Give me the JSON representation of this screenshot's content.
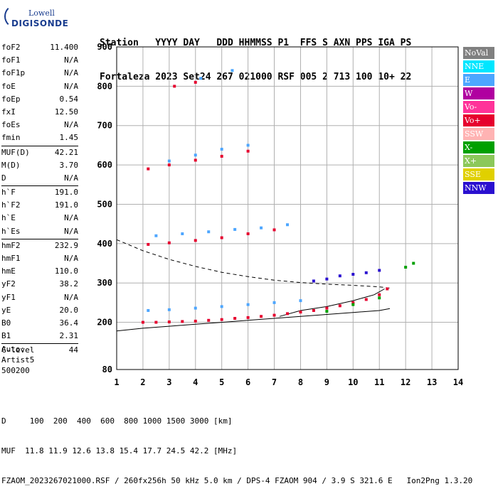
{
  "logo": {
    "line1": "Lowell",
    "line2": "DIGISONDE"
  },
  "header": {
    "labels": "Station   YYYY DAY   DDD HHMMSS P1  FFS S AXN PPS IGA PS",
    "values": "Fortaleza 2023 Set24 267 021000 RSF 005 2 713 100 10+ 22"
  },
  "params": [
    [
      {
        "k": "foF2",
        "v": "11.400"
      },
      {
        "k": "foF1",
        "v": "N/A"
      },
      {
        "k": "foF1p",
        "v": "N/A"
      },
      {
        "k": "foE",
        "v": "N/A"
      },
      {
        "k": "foEp",
        "v": "0.54"
      },
      {
        "k": "fxI",
        "v": "12.50"
      },
      {
        "k": "foEs",
        "v": "N/A"
      },
      {
        "k": "fmin",
        "v": "1.45"
      }
    ],
    [
      {
        "k": "MUF(D)",
        "v": "42.21"
      },
      {
        "k": "M(D)",
        "v": "3.70"
      },
      {
        "k": "D",
        "v": "N/A"
      }
    ],
    [
      {
        "k": "h`F",
        "v": "191.0"
      },
      {
        "k": "h`F2",
        "v": "191.0"
      },
      {
        "k": "h`E",
        "v": "N/A"
      },
      {
        "k": "h`Es",
        "v": "N/A"
      }
    ],
    [
      {
        "k": "hmF2",
        "v": "232.9"
      },
      {
        "k": "hmF1",
        "v": "N/A"
      },
      {
        "k": "hmE",
        "v": "110.0"
      },
      {
        "k": "yF2",
        "v": "38.2"
      },
      {
        "k": "yF1",
        "v": "N/A"
      },
      {
        "k": "yE",
        "v": "20.0"
      },
      {
        "k": "B0",
        "v": "36.4"
      },
      {
        "k": "B1",
        "v": "2.31"
      }
    ],
    [
      {
        "k": "C-level",
        "v": "44"
      }
    ]
  ],
  "auto": {
    "l1": "Auto:",
    "l2": "Artist5",
    "l3": "500200"
  },
  "legend": [
    {
      "label": "NoVal",
      "color": "#808080"
    },
    {
      "label": "NNE",
      "color": "#00e6ff"
    },
    {
      "label": "E",
      "color": "#4da6ff"
    },
    {
      "label": "W",
      "color": "#b000a0"
    },
    {
      "label": "Vo-",
      "color": "#ff3399"
    },
    {
      "label": "Vo+",
      "color": "#e6002e"
    },
    {
      "label": "SSW",
      "color": "#ffb3b3"
    },
    {
      "label": "X-",
      "color": "#00a000"
    },
    {
      "label": "X+",
      "color": "#8cc85a"
    },
    {
      "label": "SSE",
      "color": "#e0d000"
    },
    {
      "label": "NNW",
      "color": "#2a10d0"
    }
  ],
  "footer": {
    "l1": "D     100  200  400  600  800 1000 1500 3000 [km]",
    "l2": "MUF  11.8 11.9 12.6 13.8 15.4 17.7 24.5 42.2 [MHz]",
    "l3": "FZAOM_2023267021000.RSF / 260fx256h 50 kHz 5.0 km / DPS-4 FZAOM 904 / 3.9 S 321.6 E   Ion2Png 1.3.20"
  },
  "chart_data": {
    "type": "scatter",
    "xlim": [
      1,
      14
    ],
    "ylim": [
      80,
      900
    ],
    "x_ticks": [
      1,
      2,
      3,
      4,
      5,
      6,
      7,
      8,
      9,
      10,
      11,
      12,
      13,
      14
    ],
    "y_ticks": [
      80,
      200,
      300,
      400,
      500,
      600,
      700,
      800,
      900
    ],
    "grid": true,
    "series": [
      {
        "color": "#e6002e",
        "points": [
          [
            2.0,
            200
          ],
          [
            2.5,
            200
          ],
          [
            3.0,
            201
          ],
          [
            3.5,
            202
          ],
          [
            4.0,
            203
          ],
          [
            4.5,
            205
          ],
          [
            5.0,
            207
          ],
          [
            5.5,
            210
          ],
          [
            6.0,
            212
          ],
          [
            6.5,
            215
          ],
          [
            7.0,
            218
          ],
          [
            7.5,
            222
          ],
          [
            8.0,
            226
          ],
          [
            8.5,
            230
          ],
          [
            9.0,
            236
          ],
          [
            9.5,
            242
          ],
          [
            10.0,
            250
          ],
          [
            10.5,
            258
          ],
          [
            11.0,
            270
          ],
          [
            11.3,
            285
          ],
          [
            2.2,
            398
          ],
          [
            3.0,
            402
          ],
          [
            4.0,
            408
          ],
          [
            5.0,
            415
          ],
          [
            6.0,
            425
          ],
          [
            7.0,
            435
          ],
          [
            2.2,
            590
          ],
          [
            3.0,
            600
          ],
          [
            4.0,
            612
          ],
          [
            5.0,
            622
          ],
          [
            6.0,
            635
          ],
          [
            3.2,
            800
          ],
          [
            4.0,
            810
          ]
        ]
      },
      {
        "color": "#4da6ff",
        "points": [
          [
            2.2,
            230
          ],
          [
            3.0,
            232
          ],
          [
            4.0,
            236
          ],
          [
            5.0,
            240
          ],
          [
            6.0,
            245
          ],
          [
            7.0,
            250
          ],
          [
            8.0,
            255
          ],
          [
            2.5,
            420
          ],
          [
            3.5,
            425
          ],
          [
            4.5,
            430
          ],
          [
            5.5,
            436
          ],
          [
            6.5,
            440
          ],
          [
            7.5,
            448
          ],
          [
            3.0,
            610
          ],
          [
            4.0,
            625
          ],
          [
            5.0,
            640
          ],
          [
            6.0,
            650
          ],
          [
            4.2,
            820
          ],
          [
            5.4,
            840
          ]
        ]
      },
      {
        "color": "#2a10d0",
        "points": [
          [
            8.5,
            305
          ],
          [
            9.0,
            310
          ],
          [
            9.5,
            318
          ],
          [
            10.0,
            322
          ],
          [
            10.5,
            326
          ],
          [
            11.0,
            332
          ]
        ]
      },
      {
        "color": "#00a000",
        "points": [
          [
            9.0,
            228
          ],
          [
            10.0,
            245
          ],
          [
            11.0,
            262
          ],
          [
            12.0,
            340
          ],
          [
            12.3,
            350
          ]
        ]
      }
    ],
    "lines": [
      {
        "style": "solid",
        "points": [
          [
            1.0,
            178
          ],
          [
            2.0,
            185
          ],
          [
            3.0,
            190
          ],
          [
            4.0,
            195
          ],
          [
            5.0,
            200
          ],
          [
            6.0,
            205
          ],
          [
            7.0,
            210
          ],
          [
            8.0,
            215
          ],
          [
            9.0,
            220
          ],
          [
            10.0,
            225
          ],
          [
            11.0,
            230
          ],
          [
            11.4,
            235
          ]
        ]
      },
      {
        "style": "dashed",
        "points": [
          [
            1.0,
            410
          ],
          [
            2.0,
            382
          ],
          [
            3.0,
            360
          ],
          [
            4.0,
            342
          ],
          [
            5.0,
            327
          ],
          [
            6.0,
            316
          ],
          [
            7.0,
            307
          ],
          [
            8.0,
            301
          ],
          [
            9.0,
            297
          ],
          [
            10.0,
            294
          ],
          [
            11.0,
            290
          ],
          [
            11.4,
            287
          ]
        ]
      },
      {
        "style": "solid",
        "points": [
          [
            7.2,
            215
          ],
          [
            8.0,
            230
          ],
          [
            9.0,
            240
          ],
          [
            10.0,
            255
          ],
          [
            10.8,
            270
          ],
          [
            11.2,
            285
          ]
        ]
      }
    ]
  }
}
